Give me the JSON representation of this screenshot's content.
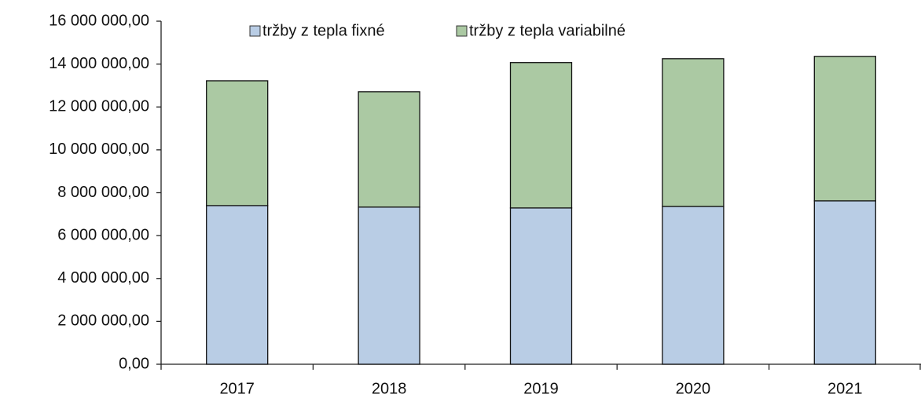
{
  "chart_data": {
    "type": "stacked_bar",
    "categories": [
      "2017",
      "2018",
      "2019",
      "2020",
      "2021"
    ],
    "series": [
      {
        "name": "tržby z tepla fixné",
        "color": "#b9cde5",
        "values": [
          7400000,
          7330000,
          7290000,
          7360000,
          7620000
        ]
      },
      {
        "name": "tržby z tepla variabilné",
        "color": "#abc9a3",
        "values": [
          5820000,
          5380000,
          6780000,
          6890000,
          6740000
        ]
      }
    ],
    "ylim": [
      0,
      16000000
    ],
    "yticks": [
      {
        "value": 0,
        "label": "0,00"
      },
      {
        "value": 2000000,
        "label": "2 000 000,00"
      },
      {
        "value": 4000000,
        "label": "4 000 000,00"
      },
      {
        "value": 6000000,
        "label": "6 000 000,00"
      },
      {
        "value": 8000000,
        "label": "8 000 000,00"
      },
      {
        "value": 10000000,
        "label": "10 000 000,00"
      },
      {
        "value": 12000000,
        "label": "12 000 000,00"
      },
      {
        "value": 14000000,
        "label": "14 000 000,00"
      },
      {
        "value": 16000000,
        "label": "16 000 000,00"
      }
    ],
    "grid": false,
    "legend": "top"
  }
}
